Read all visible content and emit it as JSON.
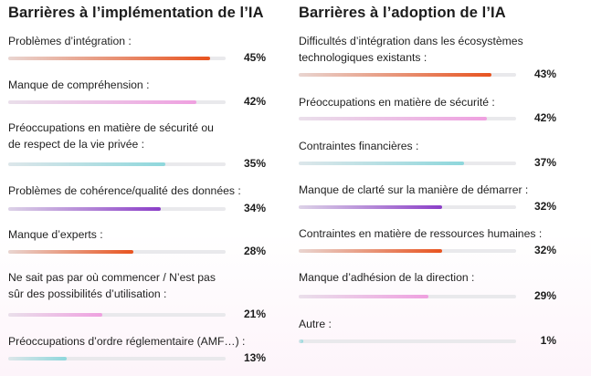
{
  "chart_data": [
    {
      "type": "bar",
      "title": "Barrières à l’implémentation de l’IA",
      "categories": [
        "Problèmes d’intégration :",
        "Manque de compréhension :",
        "Préoccupations en matière de sécurité ou\nde respect de la vie privée :",
        "Problèmes de cohérence/qualité des données :",
        "Manque d’experts :",
        "Ne sait pas par où commencer / N’est pas\nsûr des possibilités d’utilisation :",
        "Préoccupations d’ordre réglementaire (AMF…) :"
      ],
      "values": [
        45,
        42,
        35,
        34,
        28,
        21,
        13
      ],
      "value_labels": [
        "45%",
        "42%",
        "35%",
        "34%",
        "28%",
        "21%",
        "13%"
      ],
      "colors": [
        "#e8531f",
        "#efa0e0",
        "#8ed7dc",
        "#8b3ec8",
        "#e8531f",
        "#efa0e0",
        "#8ed7dc"
      ],
      "ylim": [
        0,
        100
      ]
    },
    {
      "type": "bar",
      "title": "Barrières à l’adoption de l’IA",
      "categories": [
        "Difficultés d’intégration dans les écosystèmes\ntechnologiques existants :",
        "Préoccupations en matière de sécurité :",
        "Contraintes financières :",
        "Manque de clarté sur la manière de démarrer :",
        "Contraintes en matière de ressources humaines :",
        "Manque d’adhésion de la direction :",
        "Autre :"
      ],
      "values": [
        43,
        42,
        37,
        32,
        32,
        29,
        1
      ],
      "value_labels": [
        "43%",
        "42%",
        "37%",
        "32%",
        "32%",
        "29%",
        "1%"
      ],
      "colors": [
        "#e8531f",
        "#efa0e0",
        "#8ed7dc",
        "#8b3ec8",
        "#e8531f",
        "#efa0e0",
        "#8ed7dc"
      ],
      "ylim": [
        0,
        100
      ]
    }
  ]
}
